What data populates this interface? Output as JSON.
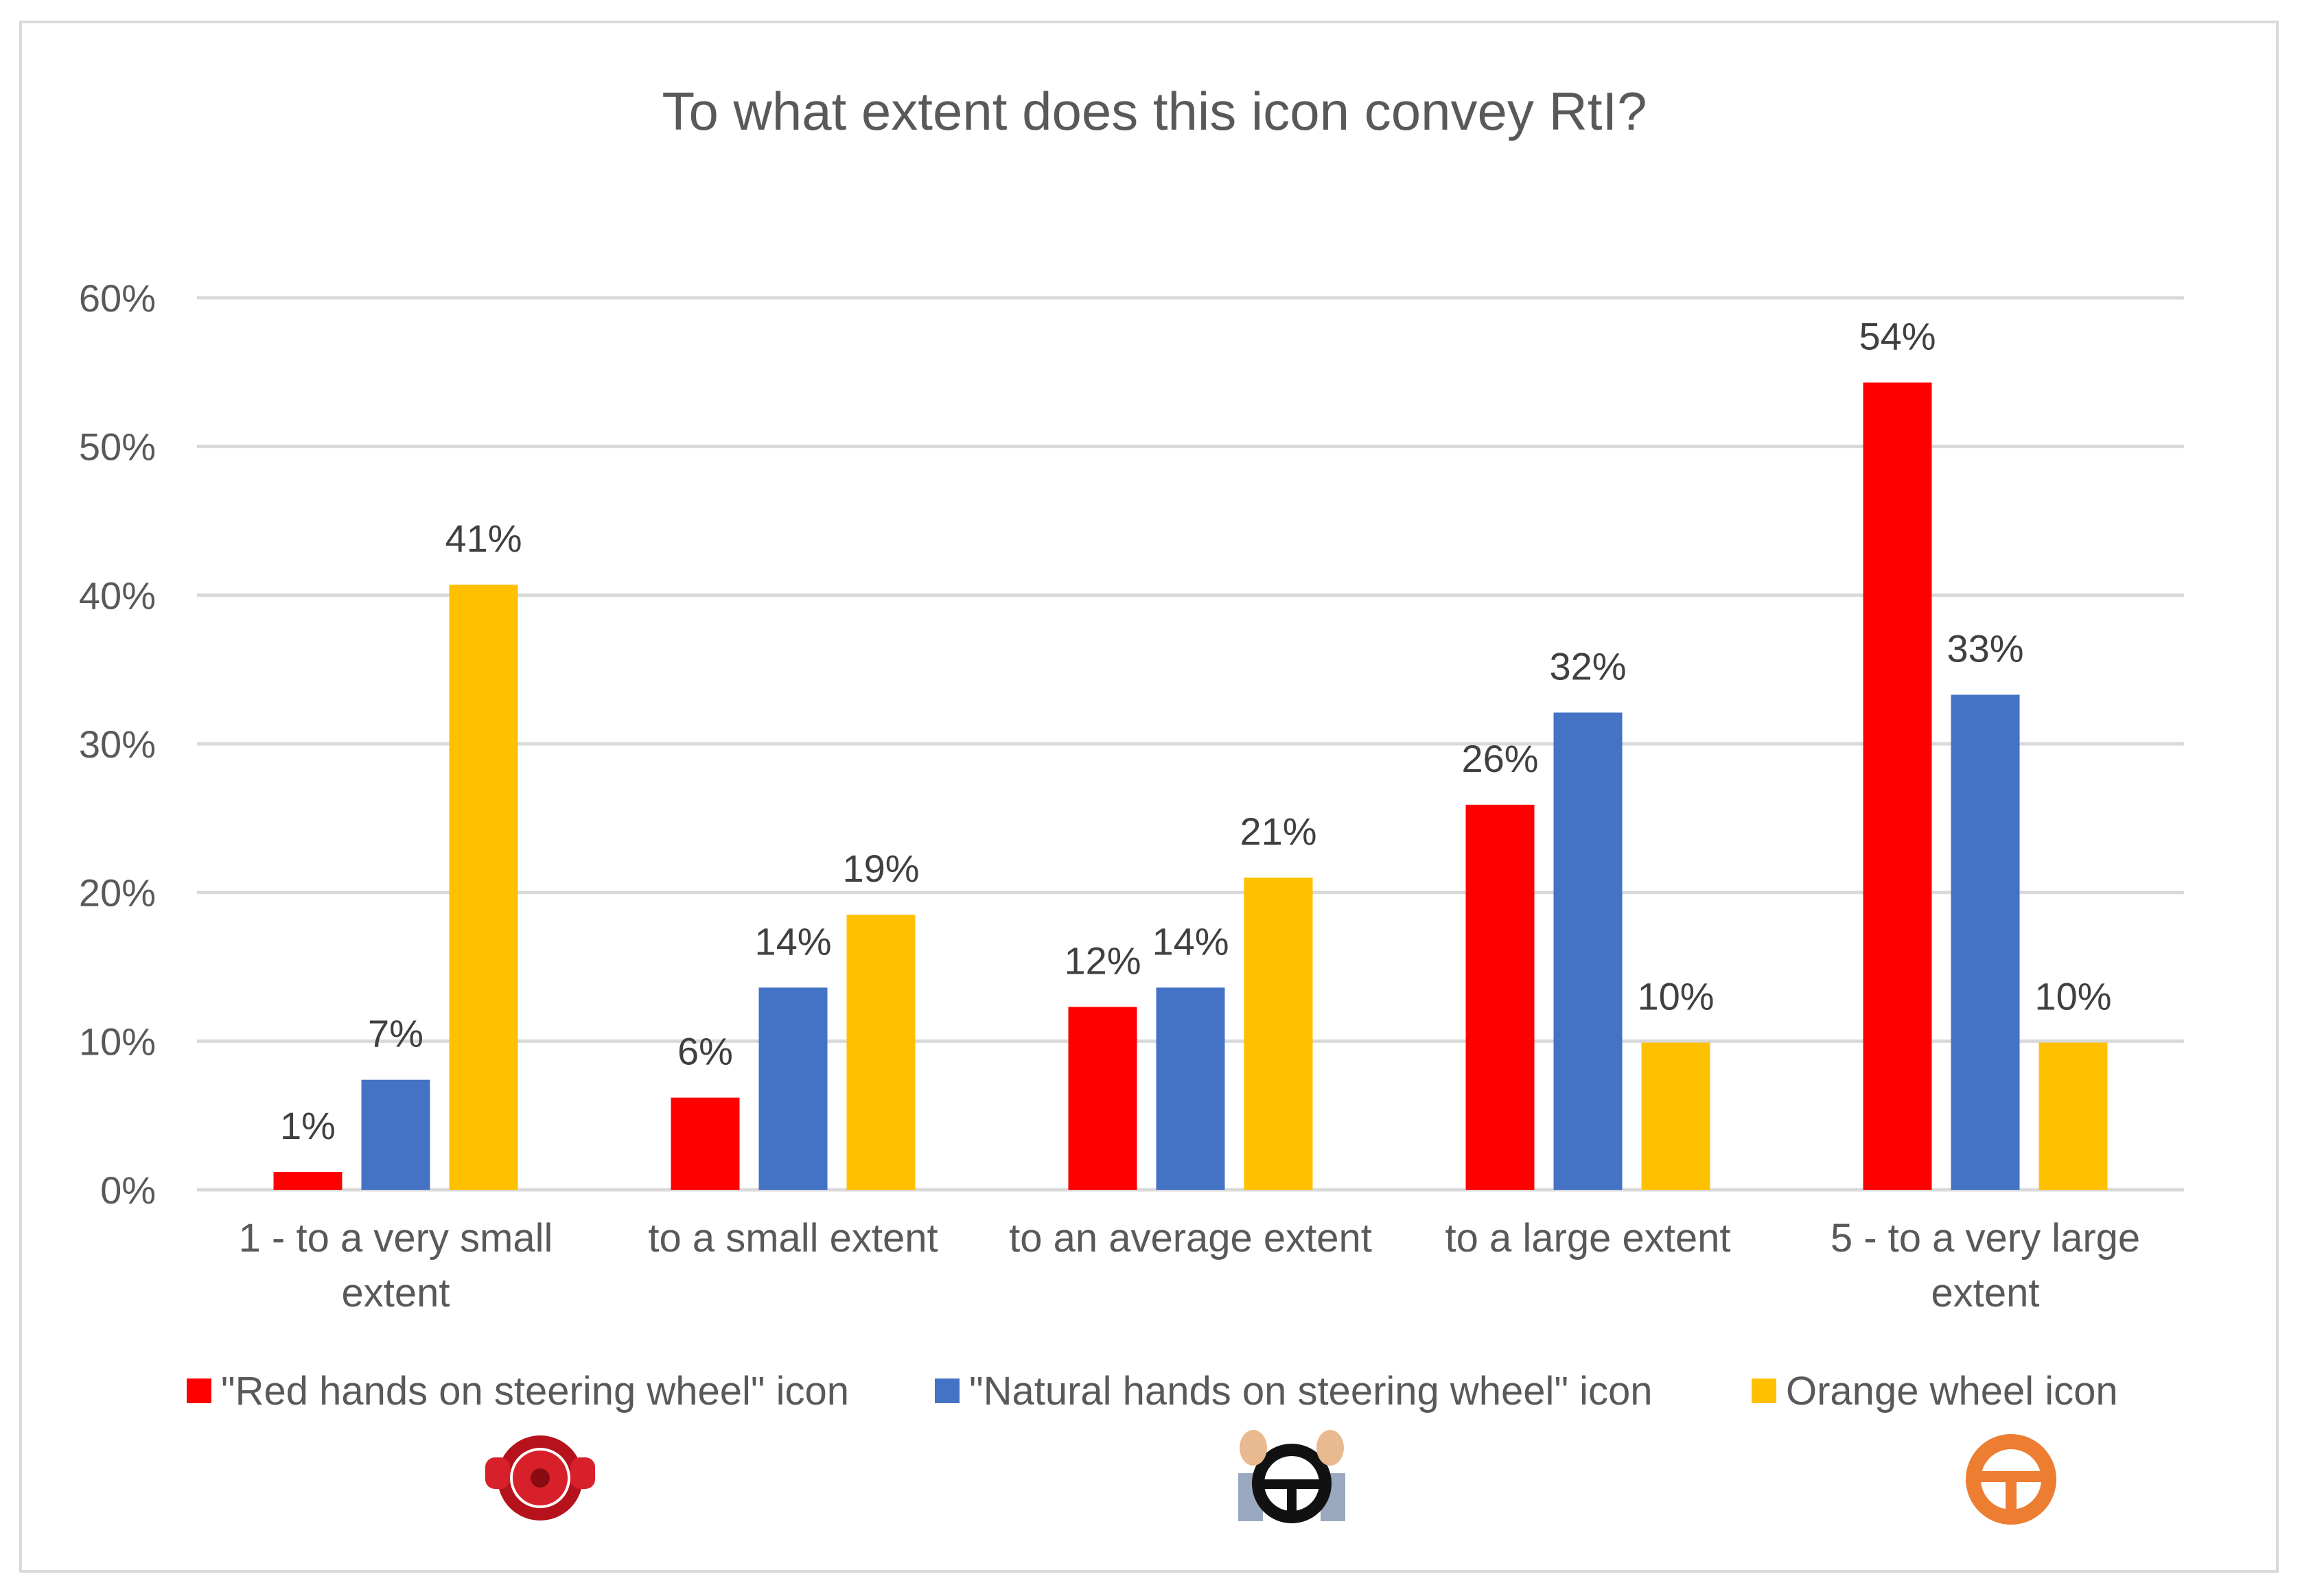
{
  "chart_data": {
    "type": "bar",
    "title": "To what extent does this icon convey RtI?",
    "xlabel": "",
    "ylabel": "",
    "ylim": [
      0,
      0.6
    ],
    "ytick_labels": [
      "0%",
      "10%",
      "20%",
      "30%",
      "40%",
      "50%",
      "60%"
    ],
    "gridlines": true,
    "legend_position": "bottom",
    "categories": [
      [
        "1 - to a very small",
        "extent"
      ],
      [
        "to a small extent"
      ],
      [
        "to an average extent"
      ],
      [
        "to a large extent"
      ],
      [
        "5 - to a very large",
        "extent"
      ]
    ],
    "series": [
      {
        "name": "\"Red hands on steering wheel\" icon",
        "color": "#ff0000",
        "values": [
          0.012,
          0.062,
          0.123,
          0.259,
          0.543
        ],
        "labels": [
          "1%",
          "6%",
          "12%",
          "26%",
          "54%"
        ]
      },
      {
        "name": "\"Natural hands on steering wheel\" icon",
        "color": "#4472c4",
        "values": [
          0.074,
          0.136,
          0.136,
          0.321,
          0.333
        ],
        "labels": [
          "7%",
          "14%",
          "14%",
          "32%",
          "33%"
        ]
      },
      {
        "name": "Orange wheel icon",
        "color": "#ffc000",
        "values": [
          0.407,
          0.185,
          0.21,
          0.099,
          0.099
        ],
        "labels": [
          "41%",
          "19%",
          "21%",
          "10%",
          "10%"
        ]
      }
    ],
    "legend_icons": [
      "red-steering-wheel-icon",
      "natural-hands-steering-wheel-icon",
      "orange-wheel-icon"
    ]
  }
}
